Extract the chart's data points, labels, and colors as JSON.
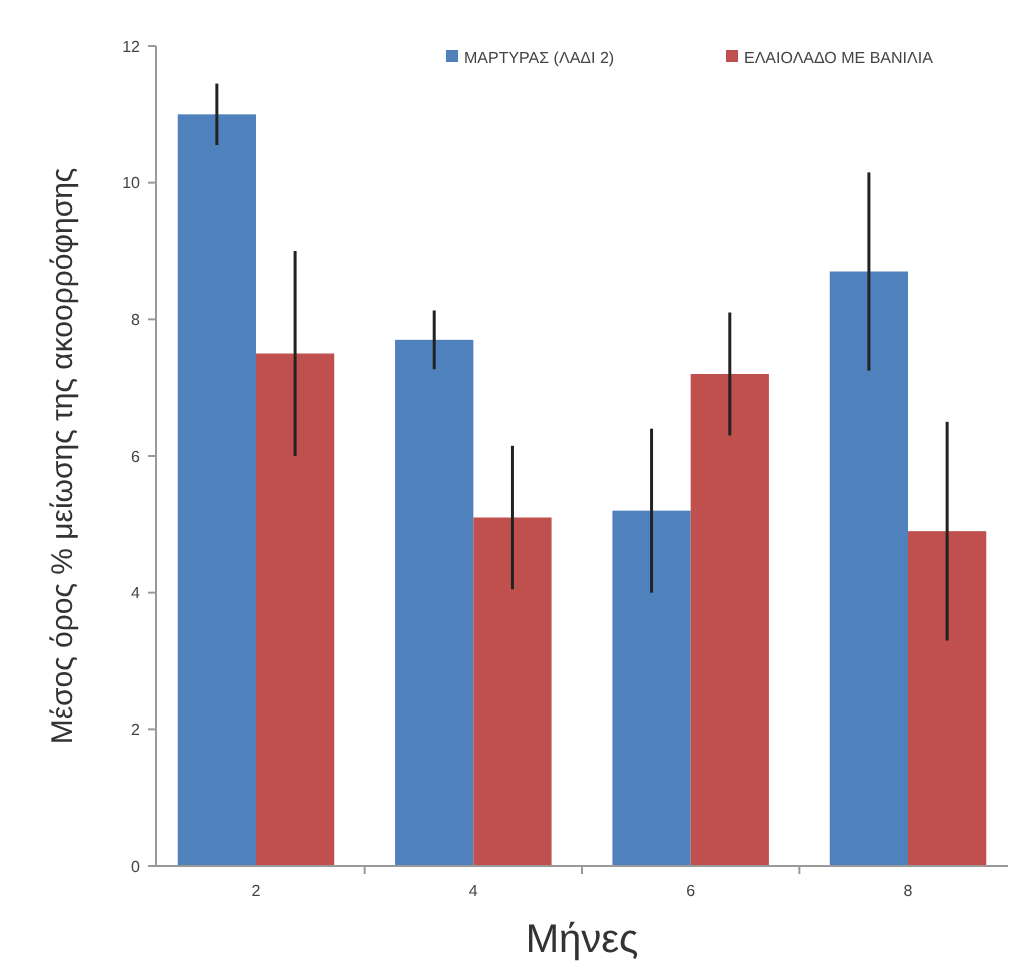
{
  "chart_data": {
    "type": "bar",
    "xlabel": "Μήνες",
    "ylabel": "Μέσος όρος % μείωσης της ακοορρόφησης",
    "categories": [
      "2",
      "4",
      "6",
      "8"
    ],
    "series": [
      {
        "name": "ΜΑΡΤΥΡΑΣ (ΛΑΔΙ 2)",
        "color": "#4f81bd",
        "values": [
          11.0,
          7.7,
          5.2,
          8.7
        ],
        "errors": [
          0.45,
          0.43,
          1.2,
          1.45
        ]
      },
      {
        "name": "ΕΛΑΙΟΛΑΔΟ ΜΕ ΒΑΝΙΛΙΑ",
        "color": "#c0504d",
        "values": [
          7.5,
          5.1,
          7.2,
          4.9
        ],
        "errors": [
          1.5,
          1.05,
          0.9,
          1.6
        ]
      }
    ],
    "ylim": [
      0,
      12
    ],
    "yticks": [
      0,
      2,
      4,
      6,
      8,
      10,
      12
    ],
    "grid": false,
    "legend": "top right"
  }
}
